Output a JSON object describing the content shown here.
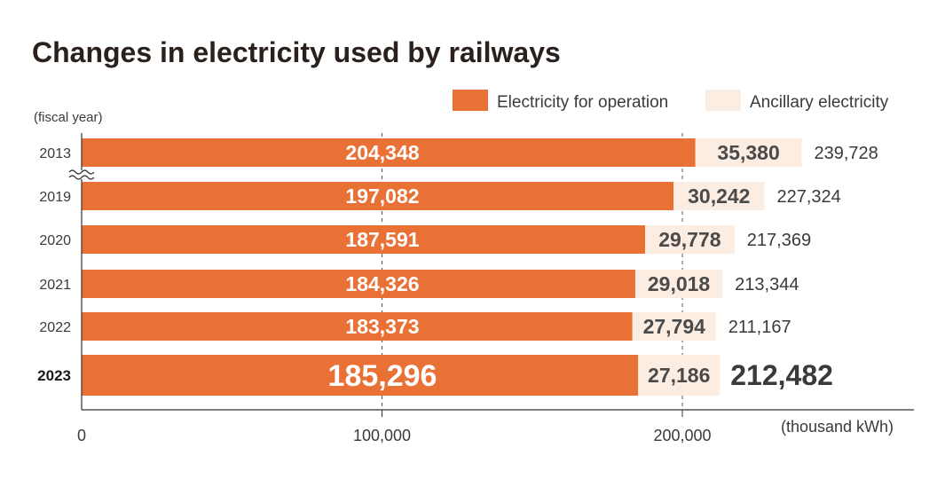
{
  "chart_data": {
    "type": "bar",
    "orientation": "horizontal",
    "stacked": true,
    "title": "Changes in electricity used by railways",
    "category_axis_label": "(fiscal year)",
    "value_axis_unit": "(thousand kWh)",
    "categories": [
      "2013",
      "2019",
      "2020",
      "2021",
      "2022",
      "2023"
    ],
    "highlight_category": "2023",
    "series": [
      {
        "name": "Electricity for operation",
        "color": "#ea7136",
        "values": [
          204348,
          197082,
          187591,
          184326,
          183373,
          185296
        ],
        "labels": [
          "204,348",
          "197,082",
          "187,591",
          "184,326",
          "183,373",
          "185,296"
        ]
      },
      {
        "name": "Ancillary electricity",
        "color": "#fcede2",
        "values": [
          35380,
          30242,
          29778,
          29018,
          27794,
          27186
        ],
        "labels": [
          "35,380",
          "30,242",
          "29,778",
          "29,018",
          "27,794",
          "27,186"
        ]
      }
    ],
    "totals": [
      "239,728",
      "227,324",
      "217,369",
      "213,344",
      "211,167",
      "212,482"
    ],
    "axis_break_after": "2013",
    "xlim": [
      0,
      275000
    ],
    "x_ticks": [
      0,
      100000,
      200000
    ],
    "x_tick_labels": [
      "0",
      "100,000",
      "200,000"
    ],
    "gridlines": "dashed at tick values",
    "legend_position": "top-right"
  }
}
